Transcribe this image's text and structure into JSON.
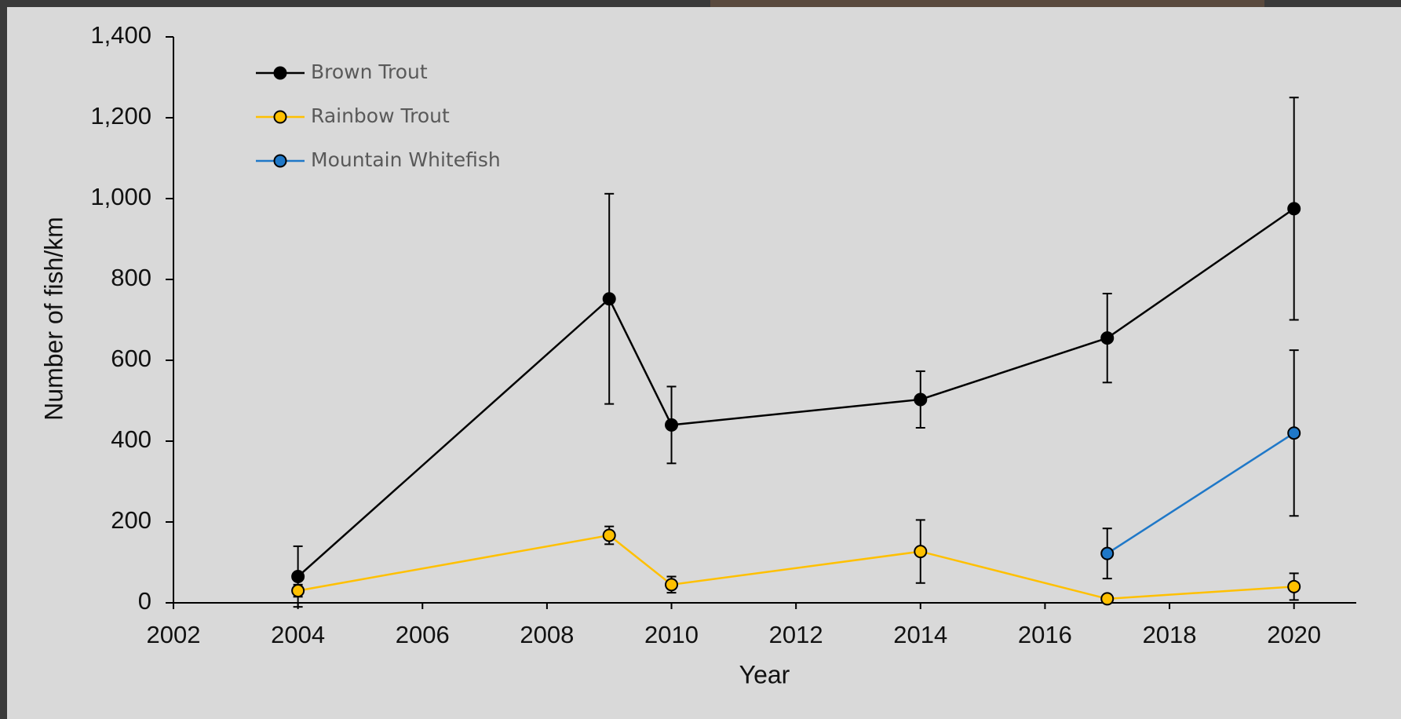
{
  "chart_data": {
    "type": "line",
    "x_label": "Year",
    "y_label": "Number of fish/km",
    "xlim": [
      2002,
      2021
    ],
    "xticks": [
      2002,
      2004,
      2006,
      2008,
      2010,
      2012,
      2014,
      2016,
      2018,
      2020
    ],
    "ylim": [
      0,
      1400
    ],
    "yticks": [
      0,
      200,
      400,
      600,
      800,
      {
        "value": 1000,
        "label": "1,000"
      },
      {
        "value": 1200,
        "label": "1,200"
      },
      {
        "value": 1400,
        "label": "1,400"
      }
    ],
    "legend": "upper-left",
    "series": [
      {
        "name": "Brown Trout",
        "color": "#000000",
        "x": [
          2004,
          2009,
          2010,
          2014,
          2017,
          2020
        ],
        "values": [
          65,
          752,
          440,
          503,
          655,
          975
        ],
        "errors": [
          75,
          260,
          95,
          70,
          110,
          275
        ]
      },
      {
        "name": "Rainbow Trout",
        "color": "#ffc000",
        "x": [
          2004,
          2009,
          2010,
          2014,
          2017,
          2020
        ],
        "values": [
          30,
          167,
          45,
          127,
          10,
          40
        ],
        "errors": [
          15,
          22,
          20,
          78,
          5,
          33
        ]
      },
      {
        "name": "Mountain Whitefish",
        "color": "#1f78c8",
        "x": [
          2017,
          2020
        ],
        "values": [
          122,
          420
        ],
        "errors": [
          62,
          205
        ]
      }
    ]
  }
}
